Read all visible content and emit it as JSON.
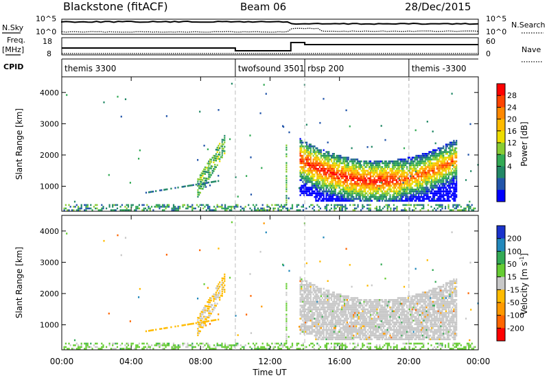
{
  "header": {
    "station": "Blackstone (fitACF)",
    "beam": "Beam 06",
    "date": "28/Dec/2015"
  },
  "summary": {
    "nsky_label": "N.Sky",
    "nsearch_label": "N.Search",
    "nsky_ticks": [
      "10^5",
      "10^0"
    ],
    "nsearch_ticks": [
      "10^5",
      "10^0"
    ],
    "freq_label_1": "Freq.",
    "freq_label_2": "[MHz]",
    "freq_ticks": [
      "18",
      "8"
    ],
    "nave_label": "Nave",
    "nave_ticks": [
      "60",
      "0"
    ],
    "cpid_label": "CPID",
    "cpid_segments": [
      {
        "label": "themis 3300",
        "start": 0.0,
        "end": 10.0
      },
      {
        "label": "twofsound 3501",
        "start": 10.0,
        "end": 14.0
      },
      {
        "label": "rbsp 200",
        "start": 14.0,
        "end": 20.0
      },
      {
        "label": "themis -3300",
        "start": 20.0,
        "end": 24.0
      }
    ]
  },
  "colorbars": {
    "power": {
      "label": "Power [dB]",
      "ticks": [
        "28",
        "24",
        "20",
        "16",
        "12",
        "8",
        "4"
      ],
      "colors": [
        "#ff0000",
        "#ff4400",
        "#ff8800",
        "#ffbb00",
        "#eedd00",
        "#88cc33",
        "#33aa55",
        "#228866",
        "#2255aa",
        "#0000ff"
      ]
    },
    "velocity": {
      "label": "Velocity [m s",
      "label_sup": "-1",
      "label_end": "]",
      "ticks": [
        "200",
        "100",
        "50",
        "15",
        "-15",
        "-50",
        "-100",
        "-200"
      ],
      "colors": [
        "#1a33cc",
        "#2288bb",
        "#33aa55",
        "#66cc33",
        "#c8c8c8",
        "#ffbb00",
        "#ff9900",
        "#ff6600",
        "#ff0000"
      ]
    }
  },
  "axes": {
    "ylabel": "Slant Range [km]",
    "yticks": [
      "4000",
      "3000",
      "2000",
      "1000"
    ],
    "xlabel": "Time UT",
    "xticks": [
      "00:00",
      "04:00",
      "08:00",
      "12:00",
      "16:00",
      "20:00",
      "00:00"
    ]
  },
  "chart_data": [
    {
      "type": "heatmap",
      "title": "",
      "quantity": "Power",
      "unit": "dB",
      "x": "Time UT (hours)",
      "xlim": [
        0,
        24
      ],
      "ylim": [
        200,
        4500
      ],
      "colorscale": [
        0,
        30
      ],
      "regions": [
        {
          "t_start": 13.7,
          "t_end": 22.7,
          "range_low": 500,
          "range_high": 2100,
          "power_peak": 26
        },
        {
          "t_start": 7.8,
          "t_end": 9.4,
          "range_low": 700,
          "range_high": 2400,
          "power_peak": 12
        },
        {
          "t_start": 0.1,
          "t_end": 12.0,
          "range_low": 200,
          "range_high": 500,
          "power_peak": 10
        }
      ]
    },
    {
      "type": "heatmap",
      "title": "",
      "quantity": "Velocity",
      "unit": "m/s",
      "x": "Time UT (hours)",
      "xlim": [
        0,
        24
      ],
      "ylim": [
        200,
        4500
      ],
      "colorscale": [
        -200,
        200
      ],
      "regions": [
        {
          "t_start": 13.7,
          "t_end": 22.7,
          "range_low": 500,
          "range_high": 2100,
          "velocity": 0
        },
        {
          "t_start": 4.5,
          "t_end": 9.0,
          "range_low": 700,
          "range_high": 1700,
          "velocity": -50
        },
        {
          "t_start": 0.1,
          "t_end": 24.0,
          "range_low": 200,
          "range_high": 400,
          "velocity": 30
        }
      ]
    }
  ]
}
